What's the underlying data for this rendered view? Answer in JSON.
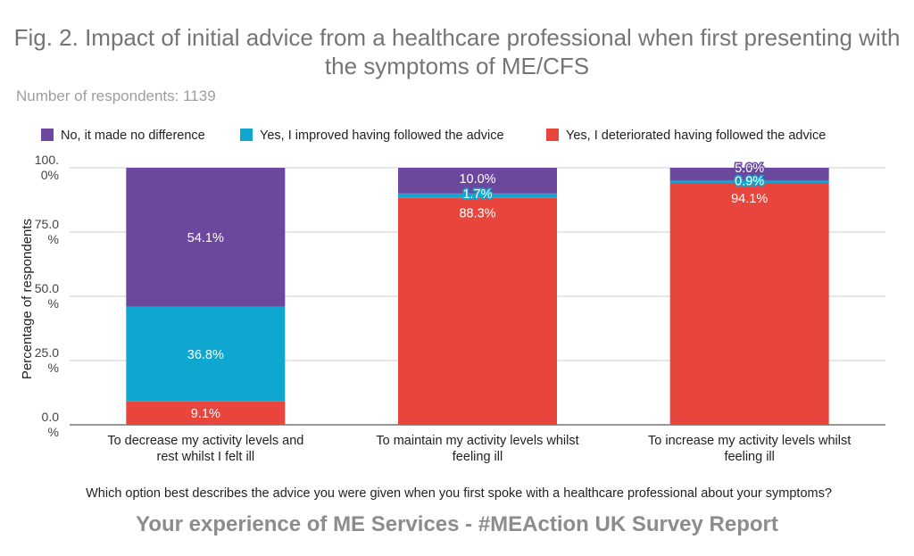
{
  "header": {
    "title": "Fig. 2. Impact of initial advice from a healthcare professional when first presenting with the symptoms of ME/CFS",
    "subtitle": "Number of respondents: 1139"
  },
  "footer": {
    "text": "Your experience of ME Services - #MEAction UK Survey Report"
  },
  "chart_data": {
    "type": "bar",
    "stacked": true,
    "title": "Fig. 2. Impact of initial advice from a healthcare professional when first presenting with the symptoms of ME/CFS",
    "subtitle": "Number of respondents: 1139",
    "xlabel": "Which option best describes the advice you were given when you first spoke with a healthcare professional about your symptoms?",
    "ylabel": "Percentage of respondents",
    "ylim": [
      0,
      100
    ],
    "yticks": [
      0,
      25,
      50,
      75,
      100
    ],
    "ytick_labels": [
      [
        "0.0",
        "%"
      ],
      [
        "25.0",
        "%"
      ],
      [
        "50.0",
        "%"
      ],
      [
        "75.0",
        "%"
      ],
      [
        "100.",
        "0%"
      ]
    ],
    "grid": true,
    "legend_position": "top",
    "categories": [
      [
        "To decrease my activity levels and",
        "rest whilst I felt ill"
      ],
      [
        "To maintain my activity levels whilst",
        "feeling ill"
      ],
      [
        "To increase my activity levels whilst",
        "feeling ill"
      ]
    ],
    "series": [
      {
        "name": "Yes, I deteriorated having followed the advice",
        "color": "#e8453c",
        "values": [
          9.1,
          88.3,
          94.1
        ],
        "labels": [
          "9.1%",
          "88.3%",
          "94.1%"
        ]
      },
      {
        "name": "Yes, I improved having followed the advice",
        "color": "#0fa7d0",
        "values": [
          36.8,
          1.7,
          0.9
        ],
        "labels": [
          "36.8%",
          "1.7%",
          "0.9%"
        ]
      },
      {
        "name": "No, it made no difference",
        "color": "#6b489e",
        "values": [
          54.1,
          10.0,
          5.0
        ],
        "labels": [
          "54.1%",
          "10.0%",
          "5.0%"
        ]
      }
    ],
    "legend_order": [
      "No, it made no difference",
      "Yes, I improved having followed the advice",
      "Yes, I deteriorated having followed the advice"
    ]
  }
}
